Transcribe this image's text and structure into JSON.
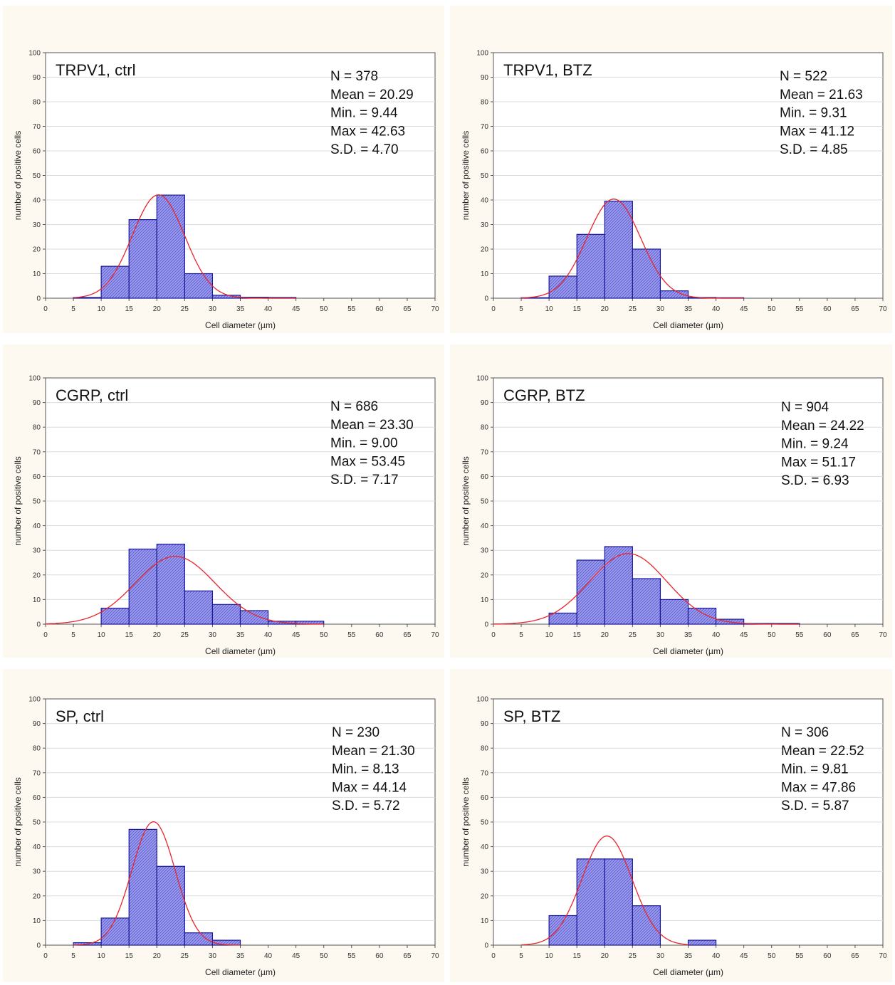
{
  "style": {
    "bar_fill": "#9c9cf0",
    "bar_hatch": "#5656c8",
    "bar_stroke": "#1a1a99",
    "curve_color": "#e8262c",
    "panel_background": "#fdf9f1"
  },
  "chart_data": [
    {
      "type": "bar",
      "title": "TRPV1, ctrl",
      "xlabel": "Cell diameter (µm)",
      "ylabel": "number of positive cells",
      "xlim": [
        0,
        70
      ],
      "ylim": [
        0,
        100
      ],
      "x_ticks": [
        "0",
        "5",
        "10",
        "15",
        "20",
        "25",
        "30",
        "35",
        "40",
        "45",
        "50",
        "55",
        "60",
        "65",
        "70"
      ],
      "y_ticks": [
        "0",
        "10",
        "20",
        "30",
        "40",
        "50",
        "60",
        "70",
        "80",
        "90",
        "100"
      ],
      "grid": "horizontal",
      "bin_edges": [
        5,
        10,
        15,
        20,
        25,
        30,
        35,
        40,
        45
      ],
      "values": [
        0.3,
        13,
        32,
        42,
        10,
        1.2,
        0.4,
        0.3
      ],
      "fit": {
        "type": "normal",
        "mean": 20.29,
        "sd": 4.7,
        "from": 5,
        "to": 45
      },
      "stats": [
        "N = 378",
        "Mean = 20.29",
        "Min. = 9.44",
        "Max = 42.63",
        "S.D. = 4.70"
      ]
    },
    {
      "type": "bar",
      "title": "TRPV1, BTZ",
      "xlabel": "Cell diameter (µm)",
      "ylabel": "number of positive cells",
      "xlim": [
        0,
        70
      ],
      "ylim": [
        0,
        100
      ],
      "x_ticks": [
        "0",
        "5",
        "10",
        "15",
        "20",
        "25",
        "30",
        "35",
        "40",
        "45",
        "50",
        "55",
        "60",
        "65",
        "70"
      ],
      "y_ticks": [
        "0",
        "10",
        "20",
        "30",
        "40",
        "50",
        "60",
        "70",
        "80",
        "90",
        "100"
      ],
      "grid": "horizontal",
      "bin_edges": [
        5,
        10,
        15,
        20,
        25,
        30,
        35,
        40,
        45
      ],
      "values": [
        0.2,
        9,
        26,
        39.5,
        20,
        3,
        0.3,
        0.2
      ],
      "fit": {
        "type": "normal",
        "mean": 21.63,
        "sd": 4.85,
        "from": 5,
        "to": 45
      },
      "stats": [
        "N = 522",
        "Mean = 21.63",
        "Min. = 9.31",
        "Max = 41.12",
        "S.D. = 4.85"
      ]
    },
    {
      "type": "bar",
      "title": "CGRP, ctrl",
      "xlabel": "Cell diameter (µm)",
      "ylabel": "number of positive cells",
      "xlim": [
        0,
        70
      ],
      "ylim": [
        0,
        100
      ],
      "x_ticks": [
        "0",
        "5",
        "10",
        "15",
        "20",
        "25",
        "30",
        "35",
        "40",
        "45",
        "50",
        "55",
        "60",
        "65",
        "70"
      ],
      "y_ticks": [
        "0",
        "10",
        "20",
        "30",
        "40",
        "50",
        "60",
        "70",
        "80",
        "90",
        "100"
      ],
      "grid": "horizontal",
      "bin_edges": [
        10,
        15,
        20,
        25,
        30,
        35,
        40,
        45,
        50
      ],
      "values": [
        6.5,
        30.5,
        32.5,
        13.5,
        8,
        5.5,
        1.2,
        1.2
      ],
      "fit": {
        "type": "normal",
        "mean": 23.3,
        "sd": 7.17,
        "from": 0,
        "to": 50
      },
      "stats": [
        "N = 686",
        "Mean = 23.30",
        "Min. = 9.00",
        "Max = 53.45",
        "S.D. = 7.17"
      ]
    },
    {
      "type": "bar",
      "title": "CGRP, BTZ",
      "xlabel": "Cell diameter (µm)",
      "ylabel": "number of positive cells",
      "xlim": [
        0,
        70
      ],
      "ylim": [
        0,
        100
      ],
      "x_ticks": [
        "0",
        "5",
        "10",
        "15",
        "20",
        "25",
        "30",
        "35",
        "40",
        "45",
        "50",
        "55",
        "60",
        "65",
        "70"
      ],
      "y_ticks": [
        "0",
        "10",
        "20",
        "30",
        "40",
        "50",
        "60",
        "70",
        "80",
        "90",
        "100"
      ],
      "grid": "horizontal",
      "bin_edges": [
        10,
        15,
        20,
        25,
        30,
        35,
        40,
        45,
        50,
        55
      ],
      "values": [
        4.5,
        26,
        31.5,
        18.5,
        10,
        6.5,
        2,
        0.3,
        0.3
      ],
      "fit": {
        "type": "normal",
        "mean": 24.22,
        "sd": 6.93,
        "from": 0,
        "to": 55
      },
      "stats": [
        "N = 904",
        "Mean = 24.22",
        "Min. = 9.24",
        "Max = 51.17",
        "S.D. = 6.93"
      ]
    },
    {
      "type": "bar",
      "title": "SP, ctrl",
      "xlabel": "Cell diameter (µm)",
      "ylabel": "number of positive cells",
      "xlim": [
        0,
        70
      ],
      "ylim": [
        0,
        100
      ],
      "x_ticks": [
        "0",
        "5",
        "10",
        "15",
        "20",
        "25",
        "30",
        "35",
        "40",
        "45",
        "50",
        "55",
        "60",
        "65",
        "70"
      ],
      "y_ticks": [
        "0",
        "10",
        "20",
        "30",
        "40",
        "50",
        "60",
        "70",
        "80",
        "90",
        "100"
      ],
      "grid": "horizontal",
      "bin_edges": [
        5,
        10,
        15,
        20,
        25,
        30,
        35
      ],
      "values": [
        1,
        11,
        47,
        32,
        5,
        2
      ],
      "fit": {
        "type": "normal",
        "mean": 19.4,
        "sd": 3.9,
        "from": 5,
        "to": 35
      },
      "stats": [
        "N = 230",
        "Mean = 21.30",
        "Min. = 8.13",
        "Max = 44.14",
        "S.D. = 5.72"
      ]
    },
    {
      "type": "bar",
      "title": "SP, BTZ",
      "xlabel": "Cell diameter (µm)",
      "ylabel": "number of positive cells",
      "xlim": [
        0,
        70
      ],
      "ylim": [
        0,
        100
      ],
      "x_ticks": [
        "0",
        "5",
        "10",
        "15",
        "20",
        "25",
        "30",
        "35",
        "40",
        "45",
        "50",
        "55",
        "60",
        "65",
        "70"
      ],
      "y_ticks": [
        "0",
        "10",
        "20",
        "30",
        "40",
        "50",
        "60",
        "70",
        "80",
        "90",
        "100"
      ],
      "grid": "horizontal",
      "bin_edges": [
        10,
        15,
        20,
        25,
        30,
        35,
        40
      ],
      "values": [
        12,
        35,
        35,
        16,
        0,
        2
      ],
      "fit": {
        "type": "normal",
        "mean": 20.4,
        "sd": 4.5,
        "from": 5,
        "to": 35
      },
      "stats": [
        "N = 306",
        "Mean = 22.52",
        "Min. = 9.81",
        "Max = 47.86",
        "S.D. = 5.87"
      ]
    }
  ]
}
